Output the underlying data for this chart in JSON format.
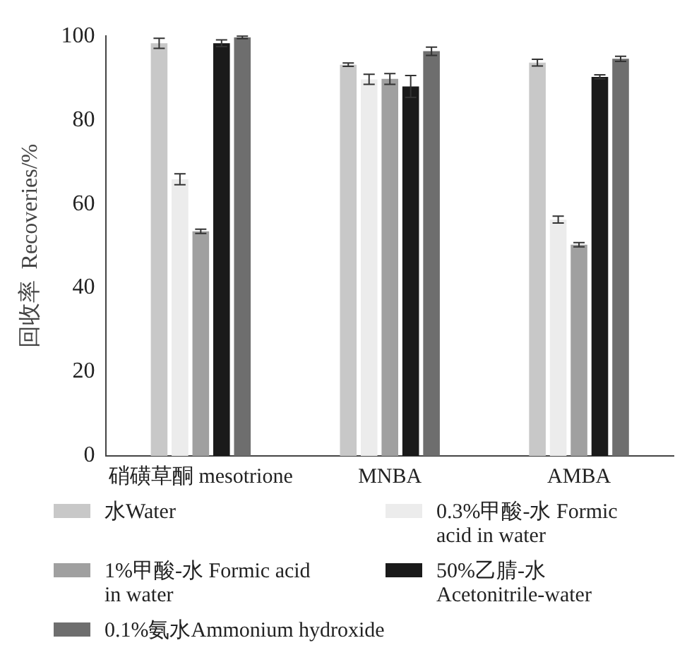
{
  "chart_data": {
    "type": "bar",
    "ylabel": "回收率  Recoveries/%",
    "categories": [
      "硝磺草酮 mesotrione",
      "MNBA",
      "AMBA"
    ],
    "ylim": [
      0,
      100
    ],
    "yticks": [
      0,
      20,
      40,
      60,
      80,
      100
    ],
    "grid": false,
    "legend": "bottom",
    "series": [
      {
        "name": "水Water",
        "color": "#c8c8c8",
        "values": [
          98.3,
          93.2,
          93.7
        ],
        "errors": [
          1.2,
          0.4,
          0.8
        ]
      },
      {
        "name": "0.3%甲酸-水 Formic acid in water",
        "color": "#ececec",
        "values": [
          65.9,
          89.7,
          56.3
        ],
        "errors": [
          1.3,
          1.2,
          0.8
        ]
      },
      {
        "name": "1%甲酸-水 Formic acid in water",
        "color": "#a0a0a0",
        "values": [
          53.5,
          89.8,
          50.3
        ],
        "errors": [
          0.5,
          1.3,
          0.5
        ]
      },
      {
        "name": "50%乙腈-水 Acetonitrile-water",
        "color": "#1a1a1a",
        "values": [
          98.3,
          88.0,
          90.3
        ],
        "errors": [
          0.8,
          2.6,
          0.5
        ]
      },
      {
        "name": "0.1%氨水Ammonium hydroxide",
        "color": "#6e6e6e",
        "values": [
          99.7,
          96.4,
          94.6
        ],
        "errors": [
          0.3,
          1.0,
          0.6
        ]
      }
    ]
  }
}
